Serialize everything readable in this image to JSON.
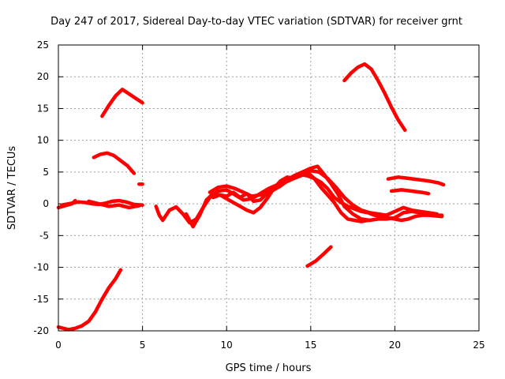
{
  "chart_data": {
    "type": "line",
    "title": "Day 247 of 2017, Sidereal Day-to-day VTEC variation (SDTVAR) for receiver grnt",
    "xlabel": "GPS time / hours",
    "ylabel": "SDTVAR / TECUs",
    "xlim": [
      0,
      25
    ],
    "ylim": [
      -20,
      25
    ],
    "xticks": [
      0,
      5,
      10,
      15,
      20,
      25
    ],
    "yticks": [
      -20,
      -15,
      -10,
      -5,
      0,
      5,
      10,
      15,
      20,
      25
    ],
    "grid": true,
    "color": "#ff0000",
    "series": [
      {
        "name": "s1",
        "x": [
          0,
          0.3,
          0.6,
          1.0,
          1.4,
          1.8,
          2.2,
          2.6,
          3.0,
          3.4,
          3.7
        ],
        "y": [
          -19.4,
          -19.6,
          -19.8,
          -19.6,
          -19.2,
          -18.5,
          -17.0,
          -15.0,
          -13.2,
          -11.8,
          -10.4
        ]
      },
      {
        "name": "s2",
        "x": [
          0,
          0.4,
          0.8,
          1.0
        ],
        "y": [
          -0.6,
          -0.3,
          0.0,
          0.5
        ]
      },
      {
        "name": "s3",
        "x": [
          0.2,
          0.8,
          1.2,
          1.6,
          2.0,
          2.4,
          2.8,
          3.2,
          3.6,
          4.0,
          4.5,
          5.0
        ],
        "y": [
          -0.2,
          0.1,
          0.3,
          0.2,
          0.0,
          -0.1,
          0.1,
          0.4,
          0.5,
          0.3,
          -0.1,
          -0.2
        ]
      },
      {
        "name": "s4",
        "x": [
          1.8,
          2.4,
          3.0,
          3.6,
          4.2,
          4.8
        ],
        "y": [
          0.4,
          0.0,
          -0.4,
          -0.2,
          -0.6,
          -0.3
        ]
      },
      {
        "name": "s5",
        "x": [
          2.6,
          3.0,
          3.4,
          3.8,
          4.2,
          4.6,
          5.0
        ],
        "y": [
          13.8,
          15.5,
          17.0,
          18.0,
          17.3,
          16.6,
          15.9
        ]
      },
      {
        "name": "s6",
        "x": [
          2.1,
          2.5,
          2.9,
          3.3,
          3.7,
          4.1,
          4.5
        ],
        "y": [
          7.3,
          7.8,
          8.0,
          7.6,
          6.8,
          6.0,
          4.8
        ]
      },
      {
        "name": "s7",
        "x": [
          4.8,
          5.0
        ],
        "y": [
          3.1,
          3.1
        ]
      },
      {
        "name": "s8",
        "x": [
          5.8,
          6.0,
          6.2,
          6.6,
          7.0,
          7.4,
          7.8,
          8.2,
          8.6,
          9.0,
          9.5,
          10.0,
          10.5,
          11.0,
          11.5,
          12.0,
          12.5,
          13.0,
          13.5,
          14.0,
          14.5,
          15.0,
          15.4,
          15.8,
          16.2,
          16.6,
          17.0,
          17.5,
          18.0,
          18.5,
          19.0,
          19.5,
          20.0,
          20.5,
          21.0,
          21.5,
          22.0,
          22.5,
          22.8
        ],
        "y": [
          -0.4,
          -1.8,
          -2.6,
          -1.0,
          -0.5,
          -1.6,
          -3.0,
          -2.4,
          -0.6,
          1.0,
          2.0,
          2.2,
          1.4,
          0.6,
          0.8,
          1.6,
          2.4,
          3.0,
          3.6,
          4.4,
          5.0,
          5.6,
          5.9,
          4.6,
          3.2,
          1.6,
          -0.4,
          -1.6,
          -2.4,
          -2.6,
          -2.4,
          -2.4,
          -2.2,
          -1.4,
          -1.2,
          -1.4,
          -1.6,
          -1.8,
          -1.8
        ]
      },
      {
        "name": "s9",
        "x": [
          7.6,
          8.0,
          8.4,
          8.8,
          9.2,
          9.6,
          10.0,
          10.4,
          10.8,
          11.2,
          11.6,
          12.0,
          12.4,
          12.8,
          13.2,
          13.6,
          14.0,
          14.4,
          14.8,
          15.2,
          15.6,
          16.0,
          16.4,
          16.8,
          17.2,
          17.6,
          18.0,
          18.4
        ],
        "y": [
          -1.6,
          -3.6,
          -1.8,
          0.6,
          1.6,
          1.4,
          0.8,
          0.2,
          -0.4,
          -1.0,
          -1.4,
          -0.6,
          0.8,
          2.4,
          3.6,
          4.2,
          4.0,
          4.4,
          5.0,
          4.0,
          2.6,
          1.4,
          0.2,
          -1.4,
          -2.4,
          -2.6,
          -2.8,
          -2.6
        ]
      },
      {
        "name": "s10",
        "x": [
          9.0,
          9.5,
          10.0,
          10.5,
          11.0,
          11.5,
          12.0,
          12.5,
          13.0,
          13.5,
          14.0,
          14.5,
          15.0,
          15.5,
          16.0,
          16.5,
          17.0,
          17.5,
          18.0,
          18.5,
          19.0,
          19.5,
          20.0,
          20.5,
          21.0,
          21.5,
          22.0,
          22.5
        ],
        "y": [
          1.8,
          2.6,
          2.8,
          2.4,
          1.8,
          1.2,
          1.4,
          1.8,
          2.6,
          3.4,
          4.0,
          4.6,
          5.2,
          5.0,
          4.0,
          2.6,
          1.0,
          -0.2,
          -1.0,
          -1.4,
          -1.6,
          -1.8,
          -1.2,
          -0.6,
          -1.0,
          -1.2,
          -1.4,
          -1.6
        ]
      },
      {
        "name": "s11",
        "x": [
          9.2,
          9.6,
          10.0,
          10.4,
          10.8,
          11.2,
          11.6,
          12.0,
          12.4,
          12.8,
          13.2,
          13.6,
          14.0,
          14.4,
          14.8,
          15.2,
          15.6,
          16.0,
          16.4,
          16.8,
          17.2,
          17.6,
          18.0,
          18.4,
          18.8,
          19.2,
          19.6,
          20.0,
          20.4,
          20.8,
          21.2,
          21.6,
          22.0,
          22.4,
          22.8
        ],
        "y": [
          1.0,
          1.4,
          1.2,
          1.8,
          1.0,
          1.6,
          0.4,
          0.6,
          1.6,
          2.2,
          2.8,
          3.6,
          4.2,
          4.6,
          4.4,
          4.0,
          3.4,
          2.4,
          1.0,
          0.2,
          -0.4,
          -0.8,
          -1.2,
          -1.4,
          -1.8,
          -2.0,
          -2.2,
          -2.4,
          -2.6,
          -2.4,
          -2.0,
          -1.8,
          -1.8,
          -1.9,
          -2.0
        ]
      },
      {
        "name": "s12",
        "x": [
          17.0,
          17.4,
          17.8,
          18.2,
          18.6,
          19.0,
          19.4,
          19.8,
          20.2,
          20.6
        ],
        "y": [
          19.4,
          20.6,
          21.5,
          22.0,
          21.2,
          19.4,
          17.4,
          15.2,
          13.2,
          11.6
        ]
      },
      {
        "name": "s13",
        "x": [
          19.6,
          20.2,
          20.8,
          21.4,
          22.0,
          22.6,
          22.9
        ],
        "y": [
          3.9,
          4.2,
          4.0,
          3.8,
          3.6,
          3.3,
          3.0
        ]
      },
      {
        "name": "s14",
        "x": [
          19.8,
          20.4,
          21.0,
          21.6,
          22.0
        ],
        "y": [
          2.0,
          2.2,
          2.0,
          1.8,
          1.6
        ]
      },
      {
        "name": "s15",
        "x": [
          14.8,
          15.3,
          15.8,
          16.2
        ],
        "y": [
          -9.8,
          -9.0,
          -7.8,
          -6.8
        ]
      }
    ]
  }
}
